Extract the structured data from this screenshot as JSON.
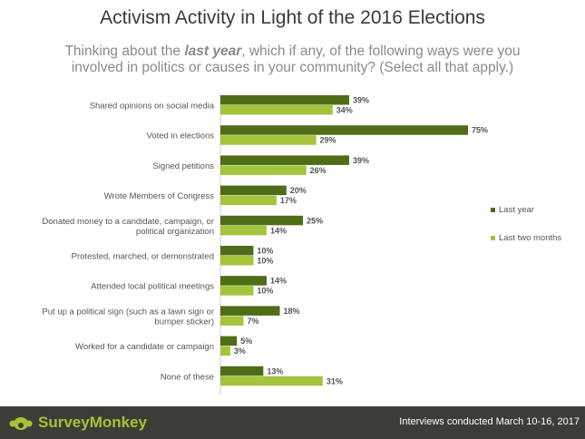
{
  "header": {
    "title": "Activism Activity in Light of the 2016 Elections",
    "subtitle_pre": "Thinking about the ",
    "subtitle_em": "last year",
    "subtitle_post": ", which if any, of the following ways were you involved in politics or causes in your community? (Select all that apply.)"
  },
  "chart_data": {
    "type": "bar",
    "orientation": "horizontal",
    "categories": [
      [
        "Shared opinions on social media"
      ],
      [
        "Voted in elections"
      ],
      [
        "Signed petitions"
      ],
      [
        "Wrote Members of Congress"
      ],
      [
        "Donated money to a candidate, campaign, or",
        "political organization"
      ],
      [
        "Protested, marched, or demonstrated"
      ],
      [
        "Attended local political meetings"
      ],
      [
        "Put up a political sign (such as a lawn sign or",
        "bumper sticker)"
      ],
      [
        "Worked for a candidate or campaign"
      ],
      [
        "None of these"
      ]
    ],
    "series": [
      {
        "name": "Last year",
        "color": "#4f6d16",
        "values": [
          39,
          75,
          39,
          20,
          25,
          10,
          14,
          18,
          5,
          13
        ]
      },
      {
        "name": "Last two months",
        "color": "#a4c43c",
        "values": [
          34,
          29,
          26,
          17,
          14,
          10,
          10,
          7,
          3,
          31
        ]
      }
    ],
    "value_suffix": "%",
    "legend_position": "right",
    "xlim": [
      0,
      100
    ],
    "grid": false
  },
  "footer": {
    "logo_text": "SurveyMonkey",
    "note": "Interviews conducted March 10-16, 2017",
    "colors": {
      "background": "#3d3d37",
      "logo": "#a4c436"
    }
  }
}
